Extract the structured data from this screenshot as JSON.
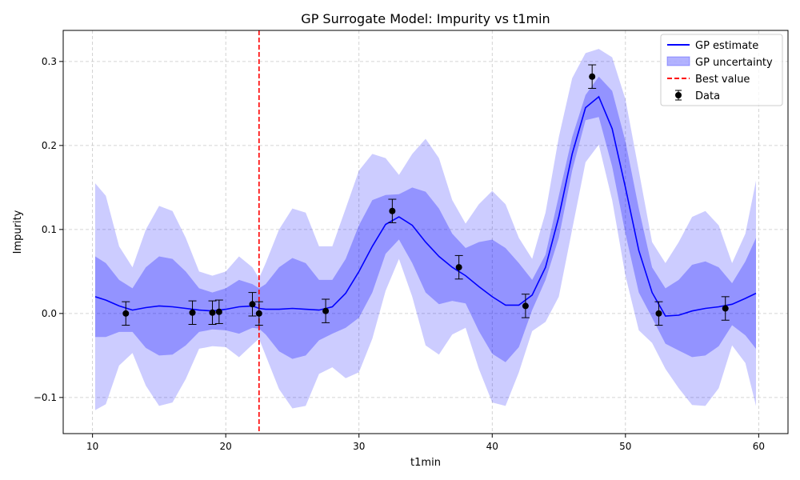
{
  "chart_data": {
    "type": "line",
    "title": "GP Surrogate Model: Impurity vs t1min",
    "xlabel": "t1min",
    "ylabel": "Impurity",
    "xlim": [
      7.8,
      62.2
    ],
    "ylim": [
      -0.143,
      0.337
    ],
    "xticks": [
      10,
      20,
      30,
      40,
      50,
      60
    ],
    "yticks": [
      -0.1,
      0.0,
      0.1,
      0.2,
      0.3
    ],
    "ytick_labels": [
      "−0.1",
      "0.0",
      "0.1",
      "0.2",
      "0.3"
    ],
    "grid": true,
    "legend": {
      "position": "top-right",
      "entries": [
        "GP estimate",
        "GP uncertainty",
        "Best value",
        "Data"
      ]
    },
    "colors": {
      "estimate": "#0000ff",
      "uncertainty": "#0000ff",
      "best": "#ff0000",
      "data": "#000000"
    },
    "gp_estimate": {
      "name": "GP estimate",
      "x": [
        10.2,
        11,
        12,
        13,
        14,
        15,
        16,
        17,
        18,
        19,
        20,
        21,
        22,
        22.5,
        23,
        24,
        25,
        26,
        27,
        28,
        29,
        30,
        31,
        32,
        33,
        34,
        35,
        36,
        37,
        38,
        39,
        40,
        41,
        42,
        43,
        44,
        45,
        46,
        47,
        48,
        49,
        50,
        51,
        52,
        53,
        54,
        55,
        56,
        57,
        58,
        59,
        59.8
      ],
      "y": [
        0.02,
        0.016,
        0.009,
        0.004,
        0.007,
        0.009,
        0.008,
        0.006,
        0.004,
        0.003,
        0.005,
        0.008,
        0.009,
        0.006,
        0.005,
        0.005,
        0.006,
        0.005,
        0.004,
        0.008,
        0.024,
        0.05,
        0.08,
        0.106,
        0.115,
        0.105,
        0.085,
        0.068,
        0.055,
        0.045,
        0.032,
        0.02,
        0.01,
        0.01,
        0.022,
        0.055,
        0.115,
        0.19,
        0.245,
        0.258,
        0.22,
        0.15,
        0.075,
        0.025,
        -0.003,
        -0.002,
        0.003,
        0.006,
        0.008,
        0.011,
        0.018,
        0.024
      ],
      "band_inner": [
        0.068,
        0.06,
        0.04,
        0.03,
        0.055,
        0.068,
        0.065,
        0.05,
        0.03,
        0.025,
        0.03,
        0.04,
        0.035,
        0.03,
        0.035,
        0.055,
        0.066,
        0.06,
        0.04,
        0.04,
        0.065,
        0.105,
        0.135,
        0.141,
        0.142,
        0.15,
        0.145,
        0.125,
        0.095,
        0.078,
        0.085,
        0.088,
        0.078,
        0.06,
        0.04,
        0.07,
        0.14,
        0.21,
        0.26,
        0.282,
        0.265,
        0.205,
        0.125,
        0.055,
        0.03,
        0.04,
        0.058,
        0.062,
        0.055,
        0.036,
        0.062,
        0.09
      ],
      "band_outer": [
        0.155,
        0.14,
        0.08,
        0.055,
        0.1,
        0.128,
        0.122,
        0.09,
        0.05,
        0.045,
        0.05,
        0.068,
        0.055,
        0.042,
        0.06,
        0.1,
        0.125,
        0.12,
        0.08,
        0.08,
        0.125,
        0.17,
        0.19,
        0.185,
        0.165,
        0.19,
        0.208,
        0.185,
        0.135,
        0.107,
        0.13,
        0.146,
        0.13,
        0.09,
        0.065,
        0.12,
        0.21,
        0.28,
        0.31,
        0.315,
        0.305,
        0.255,
        0.17,
        0.085,
        0.06,
        0.085,
        0.115,
        0.122,
        0.105,
        0.06,
        0.095,
        0.158
      ]
    },
    "best_value": {
      "name": "Best value",
      "x": 22.5
    },
    "data_points": {
      "name": "Data",
      "x": [
        12.5,
        17.5,
        19.0,
        19.5,
        22.0,
        22.5,
        27.5,
        32.5,
        37.5,
        42.5,
        47.5,
        52.5,
        57.5
      ],
      "y": [
        0.0,
        0.001,
        0.001,
        0.002,
        0.011,
        0.0,
        0.003,
        0.122,
        0.055,
        0.009,
        0.282,
        0.0,
        0.006
      ],
      "error": [
        0.014,
        0.014,
        0.014,
        0.014,
        0.014,
        0.014,
        0.014,
        0.014,
        0.014,
        0.014,
        0.014,
        0.014,
        0.014
      ]
    }
  }
}
